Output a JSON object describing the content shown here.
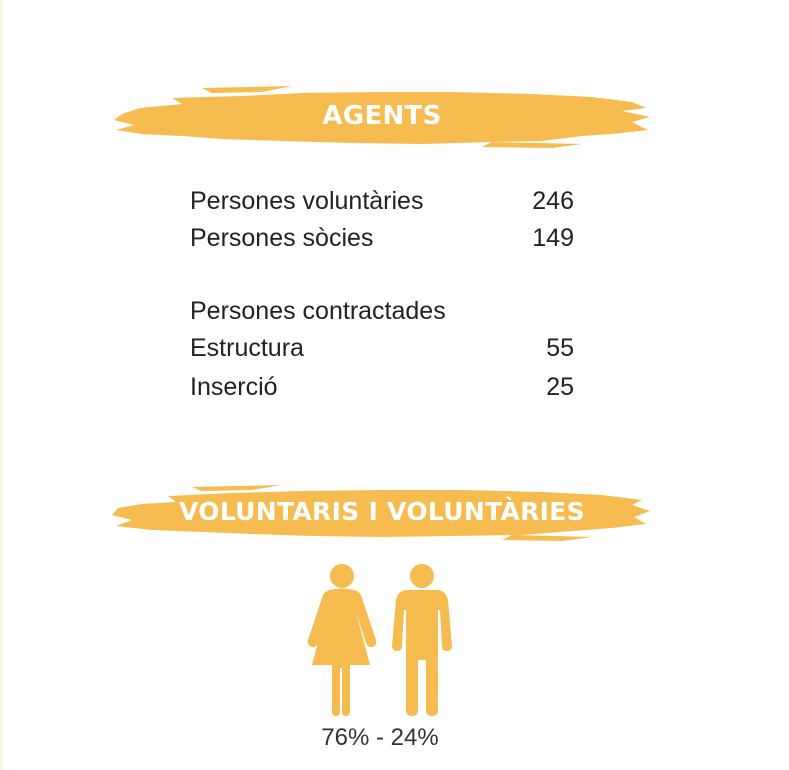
{
  "colors": {
    "accent": "#F7BC50",
    "text": "#222222",
    "banner_text": "#ffffff"
  },
  "agents": {
    "title": "AGENTS",
    "rows": [
      {
        "label": "Persones voluntàries",
        "value": "246"
      },
      {
        "label": "Persones sòcies",
        "value": "149"
      }
    ],
    "contracted": {
      "heading": "Persones contractades",
      "rows": [
        {
          "label": "Estructura",
          "value": "55"
        },
        {
          "label": "Inserció",
          "value": "25"
        }
      ]
    }
  },
  "volunteers": {
    "title": "VOLUNTARIS I VOLUNTÀRIES",
    "icons": [
      "female-figure-icon",
      "male-figure-icon"
    ],
    "female_percent": 76,
    "male_percent": 24,
    "caption": "76% - 24%"
  }
}
